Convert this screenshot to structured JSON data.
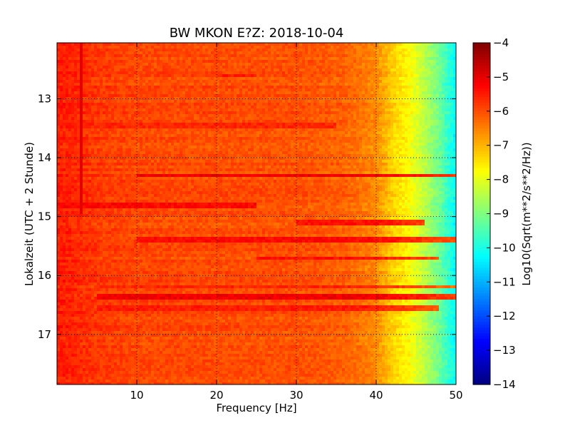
{
  "chart_data": {
    "type": "heatmap",
    "title": "BW MKON E?Z: 2018-10-04",
    "xlabel": "Frequency [Hz]",
    "ylabel": "Lokalzeit (UTC + 2 Stunde)",
    "xlim": [
      0,
      50
    ],
    "ylim": [
      12.05,
      17.85
    ],
    "y_axis_inverted": true,
    "grid": true,
    "x_ticks": [
      {
        "value": 10,
        "label": "10"
      },
      {
        "value": 20,
        "label": "20"
      },
      {
        "value": 30,
        "label": "30"
      },
      {
        "value": 40,
        "label": "40"
      },
      {
        "value": 50,
        "label": "50"
      }
    ],
    "y_ticks": [
      {
        "value": 13,
        "label": "13"
      },
      {
        "value": 14,
        "label": "14"
      },
      {
        "value": 15,
        "label": "15"
      },
      {
        "value": 16,
        "label": "16"
      },
      {
        "value": 17,
        "label": "17"
      }
    ],
    "colorbar": {
      "label": "Log10(Sqrt(m**2/s**2/Hz))",
      "range": [
        -14,
        -4
      ],
      "ticks": [
        {
          "value": -4,
          "label": "−4"
        },
        {
          "value": -5,
          "label": "−5"
        },
        {
          "value": -6,
          "label": "−6"
        },
        {
          "value": -7,
          "label": "−7"
        },
        {
          "value": -8,
          "label": "−8"
        },
        {
          "value": -9,
          "label": "−9"
        },
        {
          "value": -10,
          "label": "−10"
        },
        {
          "value": -11,
          "label": "−11"
        },
        {
          "value": -12,
          "label": "−12"
        },
        {
          "value": -13,
          "label": "−13"
        },
        {
          "value": -14,
          "label": "−14"
        }
      ],
      "colormap": "jet"
    },
    "spectrum_profile": [
      {
        "freq": 0,
        "value": -5.5
      },
      {
        "freq": 2,
        "value": -5.6
      },
      {
        "freq": 5,
        "value": -5.8
      },
      {
        "freq": 10,
        "value": -5.95
      },
      {
        "freq": 20,
        "value": -6.0
      },
      {
        "freq": 30,
        "value": -6.05
      },
      {
        "freq": 36,
        "value": -6.2
      },
      {
        "freq": 40,
        "value": -6.6
      },
      {
        "freq": 42,
        "value": -7.3
      },
      {
        "freq": 44,
        "value": -7.7
      },
      {
        "freq": 46,
        "value": -8.4
      },
      {
        "freq": 48,
        "value": -9.2
      },
      {
        "freq": 50,
        "value": -10.3
      }
    ],
    "horizontal_bands": [
      {
        "time": 14.3,
        "fmin": 10,
        "fmax": 50,
        "value": -5.1
      },
      {
        "time": 14.8,
        "fmin": 0,
        "fmax": 25,
        "value": -5.3
      },
      {
        "time": 15.1,
        "fmin": 30,
        "fmax": 46,
        "value": -5.4
      },
      {
        "time": 15.4,
        "fmin": 10,
        "fmax": 50,
        "value": -5.3
      },
      {
        "time": 15.7,
        "fmin": 25,
        "fmax": 48,
        "value": -5.4
      },
      {
        "time": 16.2,
        "fmin": 5,
        "fmax": 50,
        "value": -5.6
      },
      {
        "time": 16.35,
        "fmin": 5,
        "fmax": 50,
        "value": -5.1
      },
      {
        "time": 16.55,
        "fmin": 5,
        "fmax": 48,
        "value": -5.5
      },
      {
        "time": 13.45,
        "fmin": 0,
        "fmax": 35,
        "value": -5.6
      },
      {
        "time": 12.6,
        "fmin": 20,
        "fmax": 25,
        "value": -5.5
      }
    ],
    "vertical_lines": [
      {
        "freq": 3.1,
        "tmin": 12.05,
        "tmax": 14.95,
        "value": -5.0
      }
    ]
  }
}
